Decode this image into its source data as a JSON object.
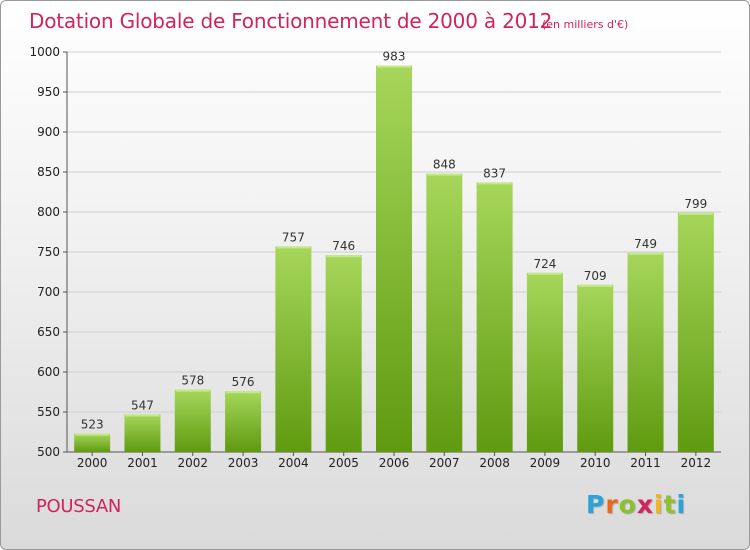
{
  "header": {
    "title": "Dotation Globale de Fonctionnement de 2000 à 2012",
    "subtitle": "(en milliers d'€)"
  },
  "footer": {
    "commune": "POUSSAN",
    "brand": {
      "letters": [
        "P",
        "r",
        "o",
        "x",
        "i",
        "t",
        "i"
      ],
      "colors": [
        "#2aa3d8",
        "#e8691b",
        "#8bc12d",
        "#d0245c",
        "#f2b31d",
        "#8bc12d",
        "#2aa3d8"
      ]
    }
  },
  "colors": {
    "title": "#d0245c",
    "bar_light": "#a6d65a",
    "bar_dark": "#5f9a10",
    "grid": "#cfcfcf",
    "axis": "#555555",
    "text": "#222222"
  },
  "chart_data": {
    "type": "bar",
    "title": "Dotation Globale de Fonctionnement de 2000 à 2012",
    "subtitle": "(en milliers d'€)",
    "xlabel": "",
    "ylabel": "",
    "categories": [
      "2000",
      "2001",
      "2002",
      "2003",
      "2004",
      "2005",
      "2006",
      "2007",
      "2008",
      "2009",
      "2010",
      "2011",
      "2012"
    ],
    "values": [
      523,
      547,
      578,
      576,
      757,
      746,
      983,
      848,
      837,
      724,
      709,
      749,
      799
    ],
    "ylim": [
      500,
      1000
    ],
    "yticks": [
      500,
      550,
      600,
      650,
      700,
      750,
      800,
      850,
      900,
      950,
      1000
    ],
    "grid": "horizontal",
    "data_labels": true
  }
}
